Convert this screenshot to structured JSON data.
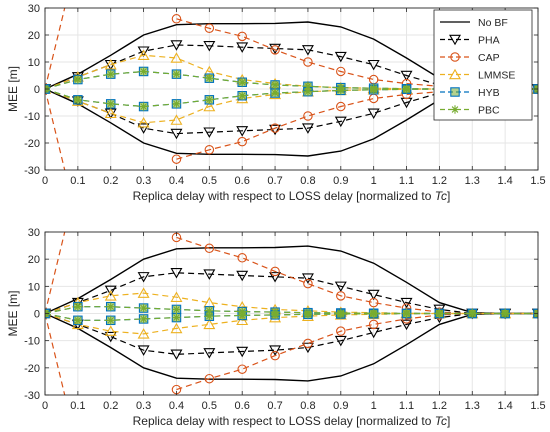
{
  "chart_data": [
    {
      "type": "line",
      "xlabel": "Replica delay with respect to LOSS delay [normalized to ",
      "xlabel_italic": "Tc",
      "xlabel_suffix": "]",
      "ylabel": "MEE [m]",
      "xlim": [
        0,
        1.5
      ],
      "ylim": [
        -30,
        30
      ],
      "xticks": [
        "0",
        "0.1",
        "0.2",
        "0.3",
        "0.4",
        "0.5",
        "0.6",
        "0.7",
        "0.8",
        "0.9",
        "1",
        "1.1",
        "1.2",
        "1.3",
        "1.4",
        "1.5"
      ],
      "yticks": [
        "-30",
        "-20",
        "-10",
        "0",
        "10",
        "20",
        "30"
      ],
      "grid": true,
      "legend_position": "top-right",
      "series": [
        {
          "name": "No BF",
          "color": "#000000",
          "dash": "solid",
          "marker": "none",
          "x": [
            0,
            0.1,
            0.2,
            0.3,
            0.4,
            0.5,
            0.6,
            0.7,
            0.8,
            0.9,
            1,
            1.1,
            1.2,
            1.3,
            1.4,
            1.5
          ],
          "upper": [
            0,
            5.5,
            12.5,
            20,
            23.8,
            24.2,
            24.2,
            24.3,
            24.8,
            23,
            18.5,
            11.5,
            4,
            0.3,
            0,
            0
          ],
          "lower": [
            0,
            -5.5,
            -12.5,
            -20,
            -23.8,
            -24.2,
            -24.2,
            -24.3,
            -24.8,
            -23,
            -18.5,
            -11.5,
            -4,
            -0.3,
            0,
            0
          ]
        },
        {
          "name": "PHA",
          "color": "#000000",
          "dash": "dashed",
          "marker": "triangle-down",
          "x": [
            0,
            0.1,
            0.2,
            0.3,
            0.4,
            0.5,
            0.6,
            0.7,
            0.8,
            0.9,
            1,
            1.1,
            1.2,
            1.3,
            1.4,
            1.5
          ],
          "upper": [
            0,
            4.5,
            9,
            14,
            16.3,
            16,
            15.5,
            15,
            14.5,
            12,
            9,
            5,
            1.5,
            0,
            0,
            0
          ],
          "lower": [
            0,
            -4.5,
            -9,
            -14.5,
            -16.5,
            -16,
            -15.5,
            -15,
            -14.5,
            -12,
            -9,
            -5,
            -1.5,
            0,
            0,
            0
          ]
        },
        {
          "name": "CAP",
          "color": "#d95319",
          "dash": "dashed",
          "marker": "circle",
          "x": [
            0.4,
            0.5,
            0.6,
            0.7,
            0.8,
            0.9,
            1,
            1.1,
            1.2,
            1.3,
            1.4,
            1.5
          ],
          "upper": [
            26,
            22.5,
            19.5,
            14.5,
            10,
            6.5,
            3.5,
            2,
            1,
            0,
            0,
            0
          ],
          "lower": [
            -26,
            -22.5,
            -19.5,
            -14.5,
            -10,
            -6.5,
            -3.5,
            -2,
            -1,
            0,
            0,
            0
          ],
          "spike_x": [
            0,
            0.07
          ]
        },
        {
          "name": "LMMSE",
          "color": "#edb120",
          "dash": "dashed",
          "marker": "triangle-up",
          "x": [
            0,
            0.1,
            0.2,
            0.3,
            0.4,
            0.5,
            0.6,
            0.7,
            0.8,
            0.9,
            1,
            1.1,
            1.2,
            1.3,
            1.4,
            1.5
          ],
          "upper": [
            0,
            4.5,
            9,
            12.5,
            11.5,
            6.5,
            3.5,
            2,
            1,
            0.5,
            0.3,
            0.1,
            0,
            0,
            0,
            0
          ],
          "lower": [
            0,
            -4.5,
            -9,
            -12.5,
            -11.5,
            -6.5,
            -3.5,
            -2,
            -1,
            -0.5,
            -0.3,
            -0.1,
            0,
            0,
            0,
            0
          ]
        },
        {
          "name": "HYB",
          "color": "#0072bd",
          "dash": "dashed",
          "marker": "square",
          "x": [
            0,
            0.1,
            0.2,
            0.3,
            0.4,
            0.5,
            0.6,
            0.7,
            0.8,
            0.9,
            1,
            1.1,
            1.2,
            1.3,
            1.4,
            1.5
          ],
          "upper": [
            0,
            3.5,
            5.5,
            6.5,
            5.5,
            4,
            2.5,
            1.5,
            1,
            0.5,
            0.3,
            0.1,
            0,
            0,
            0,
            0
          ],
          "lower": [
            0,
            -4,
            -5.5,
            -6.5,
            -5.5,
            -4,
            -2.5,
            -1.5,
            -1,
            -0.5,
            -0.3,
            -0.1,
            0,
            0,
            0,
            0
          ]
        },
        {
          "name": "PBC",
          "color": "#77ac30",
          "dash": "dashed",
          "marker": "asterisk",
          "x": [
            0,
            0.1,
            0.2,
            0.3,
            0.4,
            0.5,
            0.6,
            0.7,
            0.8,
            0.9,
            1,
            1.1,
            1.2,
            1.3,
            1.4,
            1.5
          ],
          "upper": [
            0,
            3.5,
            5.5,
            6.5,
            5.5,
            4,
            2.5,
            1.5,
            1,
            0.5,
            0.3,
            0.1,
            0,
            0,
            0,
            0
          ],
          "lower": [
            0,
            -4,
            -5.5,
            -6.5,
            -5.5,
            -4,
            -2.5,
            -1.5,
            -1,
            -0.5,
            -0.3,
            -0.1,
            0,
            0,
            0,
            0
          ]
        }
      ]
    },
    {
      "type": "line",
      "xlabel": "Replica delay with respect to LOSS delay [normalized to ",
      "xlabel_italic": "Tc",
      "xlabel_suffix": "]",
      "ylabel": "MEE [m]",
      "xlim": [
        0,
        1.5
      ],
      "ylim": [
        -30,
        30
      ],
      "xticks": [
        "0",
        "0.1",
        "0.2",
        "0.3",
        "0.4",
        "0.5",
        "0.6",
        "0.7",
        "0.8",
        "0.9",
        "1",
        "1.1",
        "1.2",
        "1.3",
        "1.4",
        "1.5"
      ],
      "yticks": [
        "-30",
        "-20",
        "-10",
        "0",
        "10",
        "20",
        "30"
      ],
      "grid": true,
      "legend_position": "none",
      "series": [
        {
          "name": "No BF",
          "color": "#000000",
          "dash": "solid",
          "marker": "none",
          "x": [
            0,
            0.1,
            0.2,
            0.3,
            0.4,
            0.5,
            0.6,
            0.7,
            0.8,
            0.9,
            1,
            1.1,
            1.2,
            1.3,
            1.4,
            1.5
          ],
          "upper": [
            0,
            5.5,
            12.5,
            20,
            23.8,
            24.2,
            24.2,
            24.3,
            24.8,
            23,
            18.5,
            11.5,
            4,
            0.3,
            0,
            0
          ],
          "lower": [
            0,
            -5.5,
            -12.5,
            -20,
            -23.8,
            -24.2,
            -24.2,
            -24.3,
            -24.8,
            -23,
            -18.5,
            -11.5,
            -4,
            -0.3,
            0,
            0
          ]
        },
        {
          "name": "PHA",
          "color": "#000000",
          "dash": "dashed",
          "marker": "triangle-down",
          "x": [
            0,
            0.1,
            0.2,
            0.3,
            0.4,
            0.5,
            0.6,
            0.7,
            0.8,
            0.9,
            1,
            1.1,
            1.2,
            1.3,
            1.4,
            1.5
          ],
          "upper": [
            0,
            4,
            8.5,
            13.5,
            15,
            14.5,
            14,
            13.5,
            13,
            10,
            7,
            4,
            1.5,
            0,
            0,
            0
          ],
          "lower": [
            0,
            -4,
            -8.5,
            -13.5,
            -15,
            -14.5,
            -14,
            -13.5,
            -12.5,
            -10,
            -7,
            -4,
            -1.5,
            0,
            0,
            0
          ]
        },
        {
          "name": "CAP",
          "color": "#d95319",
          "dash": "dashed",
          "marker": "circle",
          "x": [
            0.4,
            0.5,
            0.6,
            0.7,
            0.8,
            0.9,
            1,
            1.1,
            1.2,
            1.3,
            1.4,
            1.5
          ],
          "upper": [
            28,
            24,
            20.5,
            15.5,
            11,
            6.5,
            4,
            2,
            0.5,
            0,
            0,
            0
          ],
          "lower": [
            -28,
            -24,
            -20.5,
            -15.5,
            -11,
            -6.5,
            -4,
            -2,
            -0.5,
            0,
            0,
            0
          ],
          "spike_x": [
            0,
            0.07
          ]
        },
        {
          "name": "LMMSE",
          "color": "#edb120",
          "dash": "dashed",
          "marker": "triangle-up",
          "x": [
            0,
            0.1,
            0.2,
            0.3,
            0.4,
            0.5,
            0.6,
            0.7,
            0.8,
            0.9,
            1,
            1.1,
            1.2,
            1.3,
            1.4,
            1.5
          ],
          "upper": [
            0,
            4,
            6.5,
            7.5,
            6,
            4,
            2.5,
            1.5,
            1,
            0.5,
            0.3,
            0.1,
            0,
            0,
            0,
            0
          ],
          "lower": [
            0,
            -4,
            -6.5,
            -7.5,
            -5.5,
            -4,
            -2.5,
            -1.5,
            -1,
            -0.5,
            -0.3,
            -0.1,
            0,
            0,
            0,
            0
          ]
        },
        {
          "name": "HYB",
          "color": "#0072bd",
          "dash": "dashed",
          "marker": "square",
          "x": [
            0,
            0.1,
            0.2,
            0.3,
            0.4,
            0.5,
            0.6,
            0.7,
            0.8,
            0.9,
            1,
            1.1,
            1.2,
            1.3,
            1.4,
            1.5
          ],
          "upper": [
            0,
            2.5,
            2.5,
            2,
            1.5,
            1,
            0.7,
            0.5,
            0.3,
            0.2,
            0.1,
            0,
            0,
            0,
            0,
            0
          ],
          "lower": [
            0,
            -2.5,
            -2.5,
            -2,
            -1.5,
            -1,
            -0.7,
            -0.5,
            -0.3,
            -0.2,
            -0.1,
            0,
            0,
            0,
            0,
            0
          ]
        },
        {
          "name": "PBC",
          "color": "#77ac30",
          "dash": "dashed",
          "marker": "asterisk",
          "x": [
            0,
            0.1,
            0.2,
            0.3,
            0.4,
            0.5,
            0.6,
            0.7,
            0.8,
            0.9,
            1,
            1.1,
            1.2,
            1.3,
            1.4,
            1.5
          ],
          "upper": [
            0,
            2.5,
            2.5,
            2,
            1.5,
            1,
            0.7,
            0.5,
            0.3,
            0.2,
            0.1,
            0,
            0,
            0,
            0,
            0
          ],
          "lower": [
            0,
            -2.5,
            -2.5,
            -2,
            -1.5,
            -1,
            -0.7,
            -0.5,
            -0.3,
            -0.2,
            -0.1,
            0,
            0,
            0,
            0,
            0
          ]
        }
      ]
    }
  ]
}
